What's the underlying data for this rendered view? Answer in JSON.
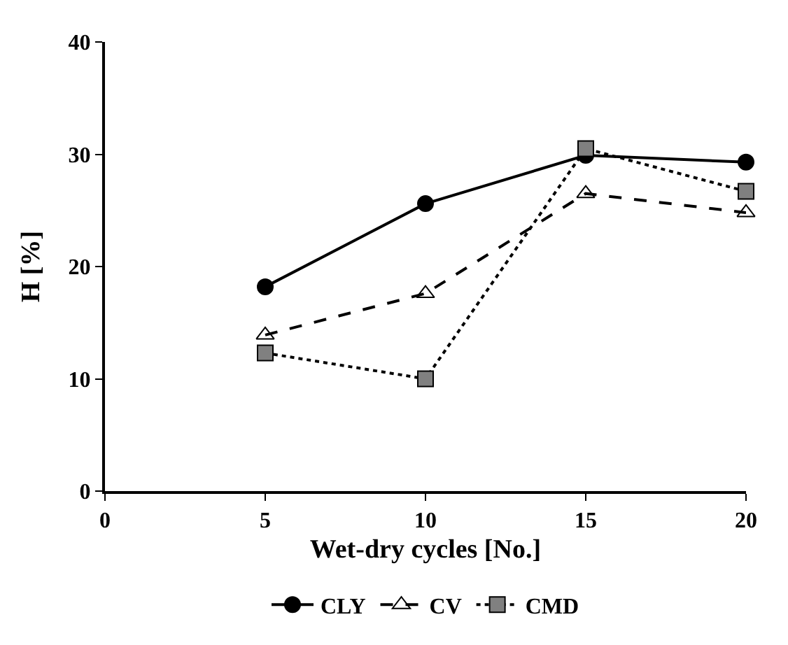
{
  "chart_data": {
    "type": "line",
    "xlabel": "Wet-dry cycles [No.]",
    "ylabel": "H [%]",
    "x": [
      5,
      10,
      15,
      20
    ],
    "series": [
      {
        "name": "CLY",
        "color": "#000000",
        "values": [
          18.2,
          25.6,
          29.9,
          29.3
        ],
        "marker": "circle",
        "line_style": "solid"
      },
      {
        "name": "CV",
        "color": "#000000",
        "values": [
          13.9,
          17.6,
          26.5,
          24.8
        ],
        "marker": "triangle",
        "line_style": "dashed"
      },
      {
        "name": "CMD",
        "color": "#808080",
        "values": [
          12.3,
          10.0,
          30.5,
          26.7
        ],
        "marker": "square",
        "line_style": "dotted"
      }
    ],
    "xlim": [
      0,
      20
    ],
    "xticks": [
      0,
      5,
      10,
      15,
      20
    ],
    "ylim": [
      0,
      40
    ],
    "yticks": [
      0,
      10,
      20,
      30,
      40
    ],
    "legend": "bottom"
  }
}
